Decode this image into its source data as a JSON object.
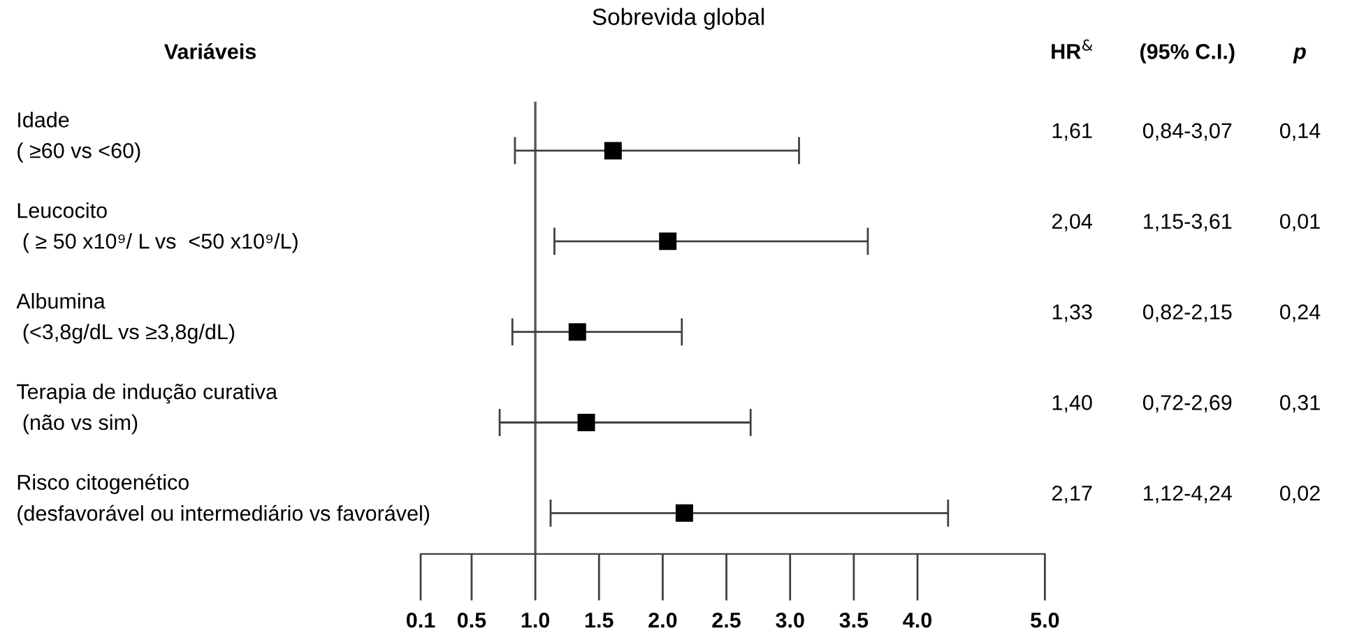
{
  "chart_data": {
    "type": "scatter",
    "orientation": "horizontal",
    "title": "Sobrevida global",
    "categories": [
      "Idade\n( ≥60 vs <60)",
      "Leucocito\n ( ≥ 50 x10⁹/ L vs  <50 x10⁹/L)",
      "Albumina\n (<3,8g/dL vs ≥3,8g/dL)",
      "Terapia de indução curativa\n (não vs sim)",
      "Risco citogenético\n(desfavorável ou intermediário vs favorável)"
    ],
    "values": [
      1.61,
      2.04,
      1.33,
      1.4,
      2.17
    ],
    "errors": [
      [
        0.84,
        3.07
      ],
      [
        1.15,
        3.61
      ],
      [
        0.82,
        2.15
      ],
      [
        0.72,
        2.69
      ],
      [
        1.12,
        4.24
      ]
    ],
    "value_labels": [
      "1,61",
      "2,04",
      "1,33",
      "1,40",
      "2,17"
    ],
    "annotations": [
      "Variáveis",
      "HR$^{&}$",
      "(95% C.I.)",
      "p",
      "0,84-3,07",
      "1,15-3,61",
      "0,82-2,15",
      "0,72-2,69",
      "1,12-4,24",
      "0,14",
      "0,01",
      "0,24",
      "0,31",
      "0,02"
    ],
    "color": "#000000",
    "marker": "square",
    "ref_lines": [
      {
        "axis": "x",
        "value": 1.0,
        "color": "#555555"
      }
    ],
    "xlim": [
      0.1,
      5.0
    ],
    "xticks": [
      0.1,
      0.5,
      {
        "value": 1,
        "label": "1.0"
      },
      1.5,
      {
        "value": 2,
        "label": "2.0"
      },
      2.5,
      {
        "value": 3,
        "label": "3.0"
      },
      3.5,
      {
        "value": 4,
        "label": "4.0"
      },
      {
        "value": 5,
        "label": "5.0"
      }
    ],
    "grid": false
  }
}
